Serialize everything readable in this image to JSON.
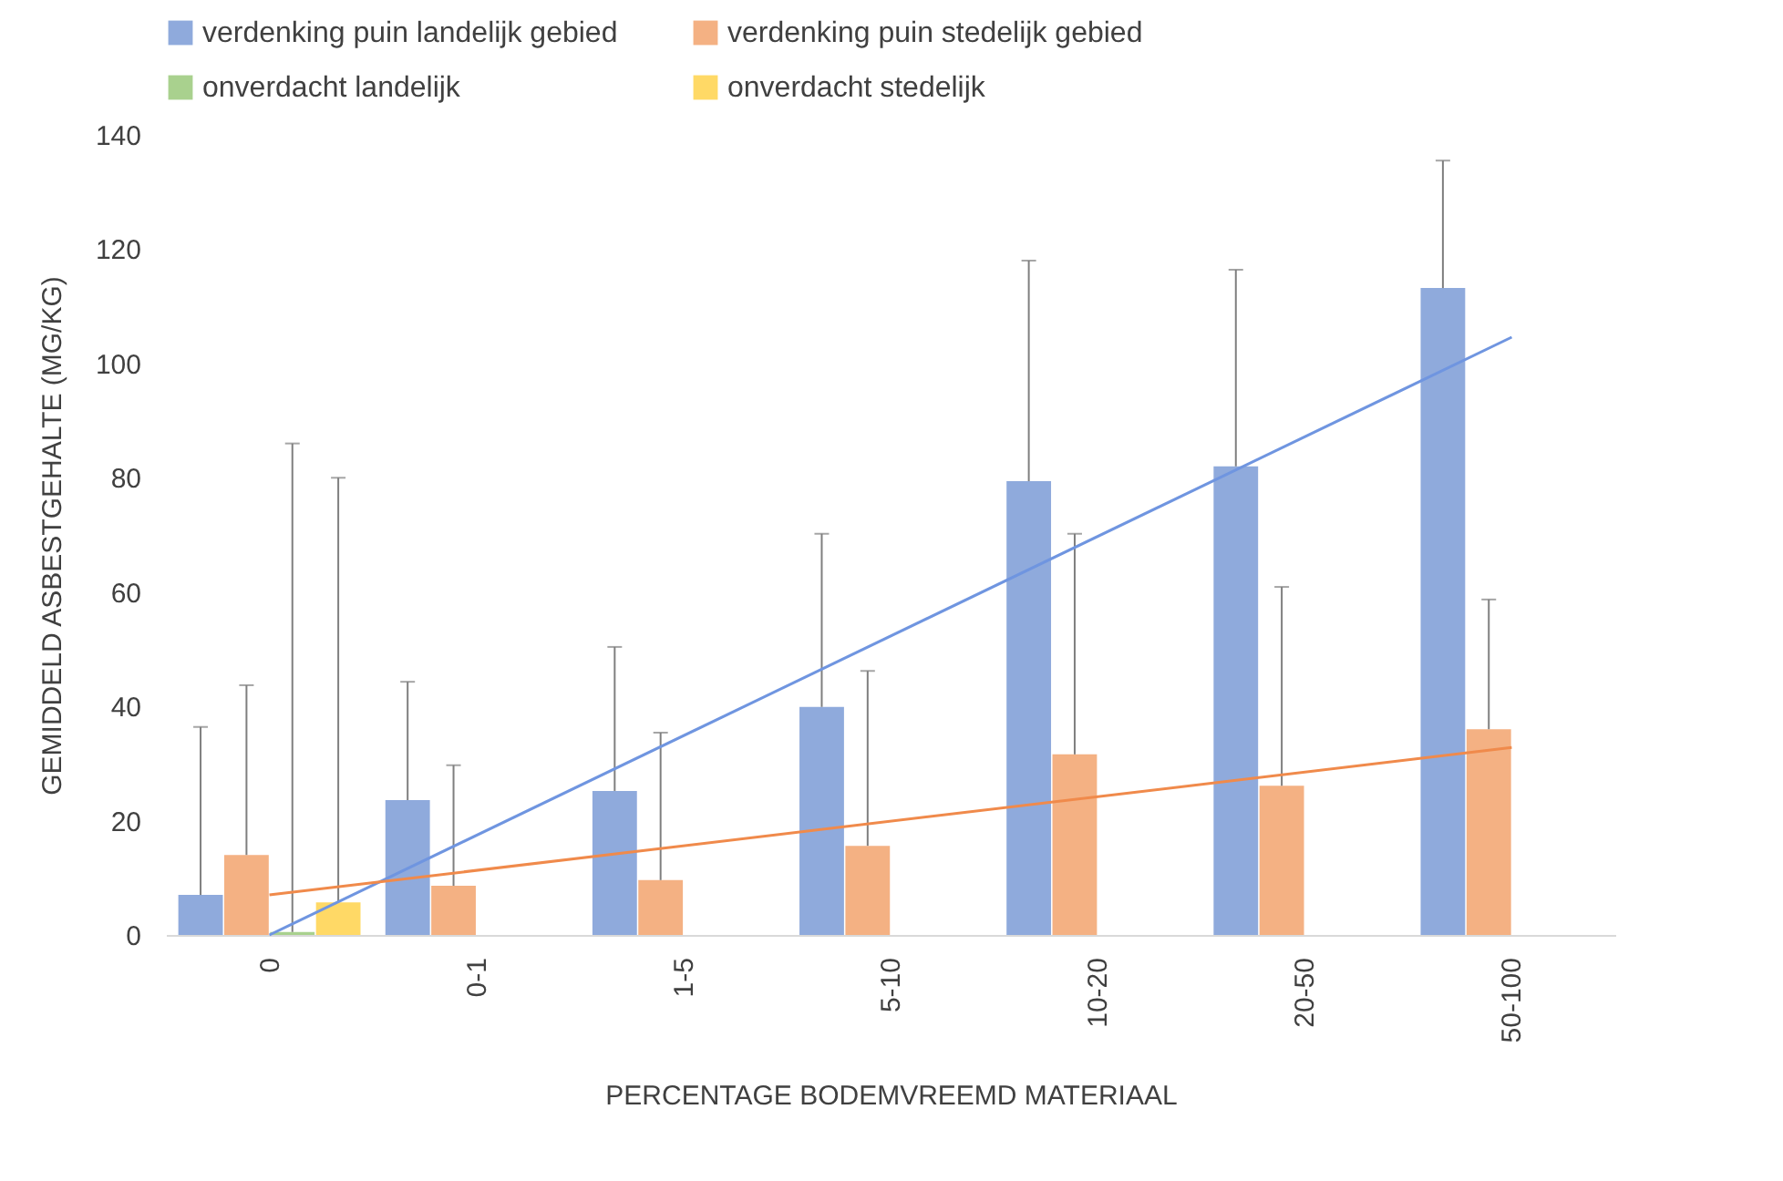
{
  "chart_data": {
    "type": "bar",
    "xlabel": "PERCENTAGE BODEMVREEMD MATERIAAL",
    "ylabel": "GEMIDDELD ASBESTGEHALTE (MG/KG)",
    "categories": [
      "0",
      "0-1",
      "1-5",
      "5-10",
      "10-20",
      "20-50",
      "50-100"
    ],
    "ylim": [
      0,
      140
    ],
    "yticks": [
      0,
      20,
      40,
      60,
      80,
      100,
      120,
      140
    ],
    "legend": "top",
    "series": [
      {
        "name": "verdenking puin landelijk gebied",
        "color": "#8faadc",
        "values": [
          7,
          23.6,
          25.2,
          39.9,
          79.4,
          82,
          113.2
        ],
        "errors": [
          [
            7,
            36.4
          ],
          [
            23.6,
            44.3
          ],
          [
            25.2,
            50.4
          ],
          [
            39.9,
            70.2
          ],
          [
            79.4,
            118
          ],
          [
            82,
            116.4
          ],
          [
            113.2,
            135.5
          ]
        ]
      },
      {
        "name": "verdenking puin stedelijk gebied",
        "color": "#f4b183",
        "values": [
          14,
          8.6,
          9.6,
          15.6,
          31.6,
          26.1,
          36
        ],
        "errors": [
          [
            14,
            43.7
          ],
          [
            8.6,
            29.7
          ],
          [
            9.6,
            35.4
          ],
          [
            15.6,
            46.2
          ],
          [
            31.6,
            70.2
          ],
          [
            26.1,
            60.9
          ],
          [
            36,
            58.7
          ]
        ]
      },
      {
        "name": "onverdacht landelijk",
        "color": "#a9d18e",
        "values": [
          0.5,
          null,
          null,
          null,
          null,
          null,
          null
        ],
        "errors": [
          [
            0.5,
            86
          ],
          null,
          null,
          null,
          null,
          null,
          null
        ]
      },
      {
        "name": "onverdacht stedelijk",
        "color": "#ffd966",
        "values": [
          5.7,
          null,
          null,
          null,
          null,
          null,
          null
        ],
        "errors": [
          [
            5.7,
            80
          ],
          null,
          null,
          null,
          null,
          null,
          null
        ]
      },
      {
        "type": "line",
        "color": "#6f95e0",
        "x": [
          "0",
          "50-100"
        ],
        "values": [
          0,
          104.6
        ]
      },
      {
        "type": "line",
        "color": "#f08a4b",
        "x": [
          "0",
          "50-100"
        ],
        "values": [
          7,
          32.8
        ]
      }
    ]
  }
}
